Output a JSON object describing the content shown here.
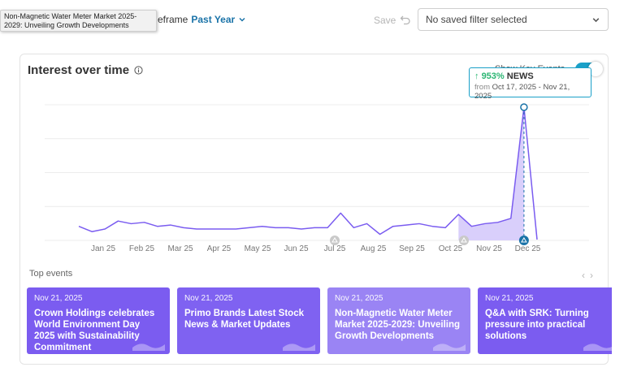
{
  "topbar": {
    "tooltip_text": "Non-Magnetic Water Meter Market 2025-2029: Unveiling Growth Developments",
    "timeframe_label": "eframe",
    "timeframe_value": "Past Year",
    "save_label": "Save",
    "filter_placeholder": "No saved filter selected"
  },
  "card": {
    "title": "Interest over time",
    "key_events_label": "Show Key Events",
    "key_events_on": true
  },
  "peak_tooltip": {
    "arrow": "↑",
    "percent": "953%",
    "type": "NEWS",
    "from_label": "from",
    "range": "Oct 17, 2025 - Nov 21, 2025"
  },
  "chart_data": {
    "type": "area",
    "x_ticks": [
      "Jan 25",
      "Feb 25",
      "Mar 25",
      "Apr 25",
      "May 25",
      "Jun 25",
      "Jul 25",
      "Aug 25",
      "Sep 25",
      "Oct 25",
      "Nov 25",
      "Dec 25"
    ],
    "values": [
      10,
      6,
      8,
      14,
      12,
      13,
      10,
      11,
      9,
      8,
      8,
      8,
      8,
      9,
      10,
      9,
      9,
      8,
      9,
      9,
      20,
      9,
      12,
      4,
      10,
      11,
      12,
      10,
      9,
      19,
      10,
      12,
      13,
      16,
      100,
      0
    ],
    "accent": "#7a5cf0",
    "highlight_fill": "#d9cffb",
    "event_markers": [
      "Jul 25",
      "Oct 25",
      "Nov 21, 2025"
    ],
    "ylim": [
      0,
      100
    ],
    "grid": true
  },
  "top_events": {
    "label": "Top events",
    "items": [
      {
        "date": "Nov 21, 2025",
        "title": "Crown Holdings celebrates World Environment Day 2025 with Sustainability Commitment",
        "color": "#7b5cf0"
      },
      {
        "date": "Nov 21, 2025",
        "title": "Primo Brands Latest Stock News & Market Updates",
        "color": "#7f62f1"
      },
      {
        "date": "Nov 21, 2025",
        "title": "Non-Magnetic Water Meter Market 2025-2029: Unveiling Growth Developments",
        "color": "#9a84f4"
      },
      {
        "date": "Nov 21, 2025",
        "title": "Q&A with SRK: Turning pressure into practical solutions",
        "color": "#7b5cf0"
      }
    ]
  }
}
